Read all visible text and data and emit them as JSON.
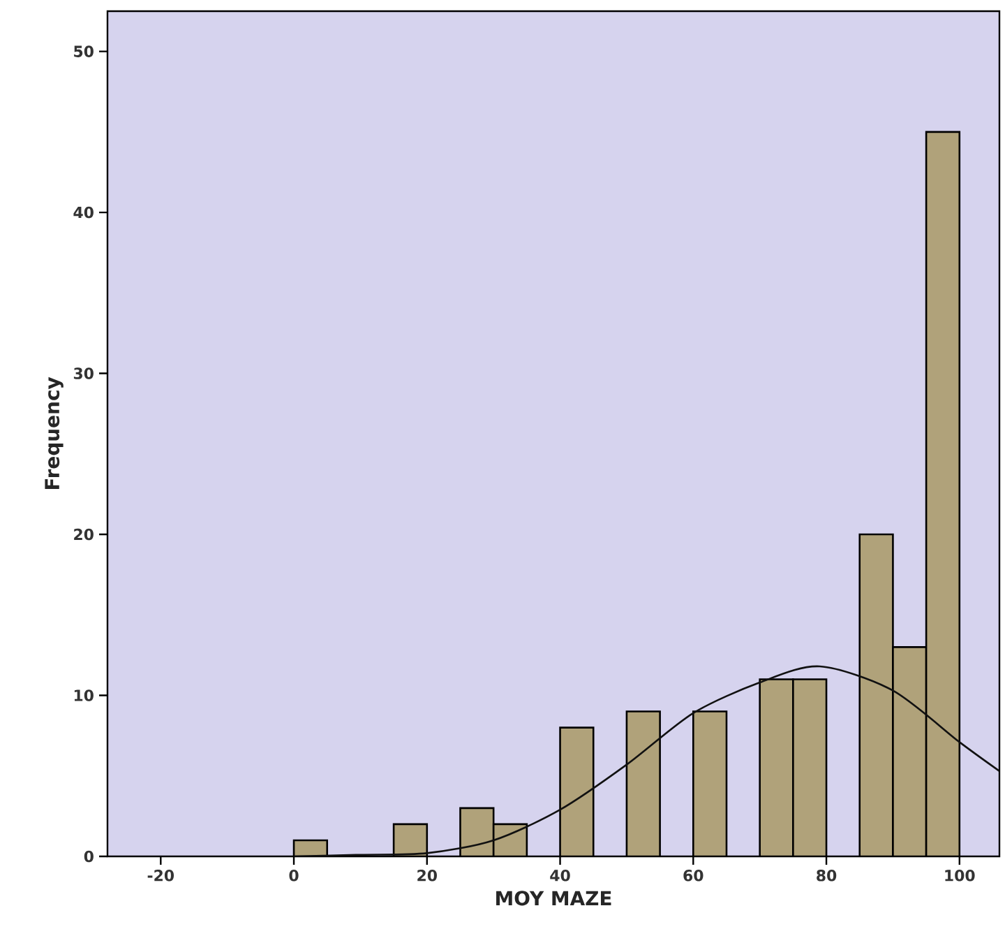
{
  "chart_data": {
    "type": "histogram",
    "xlabel": "MOY MAZE",
    "ylabel": "Frequency",
    "bins": [
      0,
      5,
      10,
      15,
      20,
      25,
      30,
      35,
      40,
      45,
      50,
      55,
      60,
      65,
      70,
      75,
      80,
      85,
      90,
      95,
      100
    ],
    "values": [
      1,
      0,
      0,
      2,
      0,
      3,
      2,
      0,
      8,
      0,
      9,
      0,
      9,
      0,
      11,
      11,
      0,
      20,
      13,
      45
    ],
    "color": "#b0a27a",
    "series": [
      {
        "type": "line",
        "color": "#111111",
        "x": [
          0,
          10,
          20,
          30,
          40,
          50,
          60,
          70,
          79,
          90,
          100,
          106
        ],
        "values": [
          0,
          0.1,
          0.2,
          1.0,
          2.9,
          5.7,
          8.9,
          10.8,
          11.8,
          10.3,
          7.1,
          5.3
        ]
      }
    ],
    "xlim": [
      -28,
      106
    ],
    "xticks": [
      -20,
      0,
      20,
      40,
      60,
      80,
      100
    ],
    "ylim": [
      0,
      52.5
    ],
    "yticks": [
      0,
      10,
      20,
      30,
      40,
      50
    ],
    "grid": false
  }
}
